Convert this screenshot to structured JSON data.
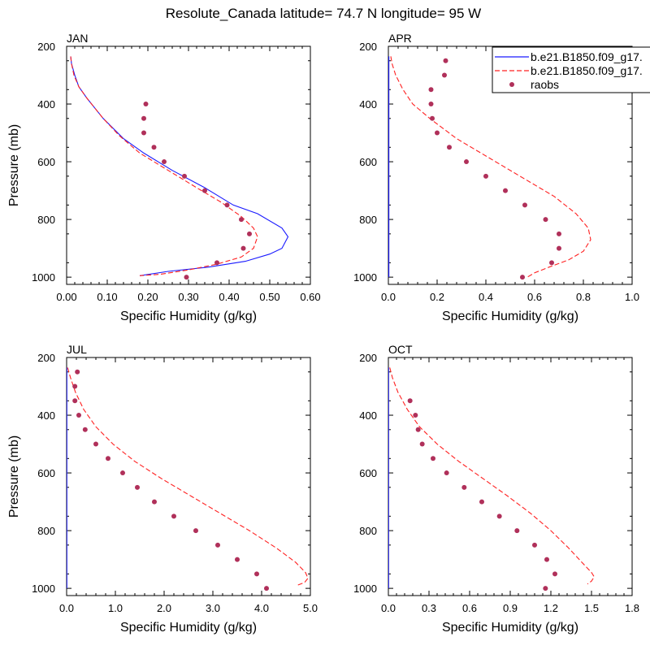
{
  "figure": {
    "title": "Resolute_Canada  latitude= 74.7 N longitude= 95 W"
  },
  "legend": {
    "placement": "top-right of APR panel",
    "entries": [
      {
        "label": "b.e21.B1850.f09_g17.",
        "style": "solid",
        "color": "#1a1aff"
      },
      {
        "label": "b.e21.B1850.f09_g17.",
        "style": "dashed",
        "color": "#ff2020"
      },
      {
        "label": "raobs",
        "style": "marker",
        "color": "#b0305a"
      }
    ]
  },
  "chart_data": [
    {
      "type": "line",
      "panel": "JAN",
      "xlabel": "Specific Humidity (g/kg)",
      "ylabel": "Pressure (mb)",
      "xlim": [
        0,
        0.6
      ],
      "xticks": [
        0,
        0.1,
        0.2,
        0.3,
        0.4,
        0.5,
        0.6
      ],
      "xticklabels": [
        "0.00",
        "0.10",
        "0.20",
        "0.30",
        "0.40",
        "0.50",
        "0.60"
      ],
      "ylim": [
        1025,
        200
      ],
      "yticks": [
        200,
        400,
        600,
        800,
        1000
      ],
      "series": [
        {
          "name": "b.e21.B1850.f09_g17. (solid)",
          "style": "solid",
          "x": [
            0.01,
            0.012,
            0.02,
            0.03,
            0.05,
            0.09,
            0.14,
            0.19,
            0.26,
            0.34,
            0.41,
            0.47,
            0.53,
            0.545,
            0.53,
            0.5,
            0.44,
            0.35,
            0.25,
            0.18
          ],
          "y": [
            235,
            260,
            300,
            340,
            380,
            450,
            520,
            570,
            630,
            690,
            750,
            780,
            830,
            860,
            900,
            920,
            945,
            965,
            980,
            995
          ]
        },
        {
          "name": "b.e21.B1850.f09_g17. (dashed)",
          "style": "dashed",
          "x": [
            0.01,
            0.012,
            0.018,
            0.03,
            0.05,
            0.09,
            0.13,
            0.18,
            0.25,
            0.32,
            0.38,
            0.43,
            0.46,
            0.47,
            0.46,
            0.43,
            0.37,
            0.3,
            0.23,
            0.18
          ],
          "y": [
            235,
            260,
            300,
            340,
            380,
            450,
            510,
            570,
            630,
            690,
            740,
            790,
            830,
            860,
            900,
            930,
            955,
            975,
            990,
            995
          ]
        },
        {
          "name": "raobs",
          "style": "marker",
          "x": [
            0.195,
            0.19,
            0.19,
            0.215,
            0.24,
            0.29,
            0.34,
            0.395,
            0.43,
            0.45,
            0.435,
            0.37,
            0.295
          ],
          "y": [
            400,
            450,
            500,
            550,
            600,
            650,
            700,
            750,
            800,
            850,
            900,
            950,
            1000
          ]
        }
      ]
    },
    {
      "type": "line",
      "panel": "APR",
      "xlabel": "Specific Humidity (g/kg)",
      "ylabel": "",
      "xlim": [
        0,
        1.0
      ],
      "xticks": [
        0,
        0.2,
        0.4,
        0.6,
        0.8,
        1.0
      ],
      "xticklabels": [
        "0.0",
        "0.2",
        "0.4",
        "0.6",
        "0.8",
        "1.0"
      ],
      "ylim": [
        1025,
        200
      ],
      "yticks": [
        200,
        400,
        600,
        800,
        1000
      ],
      "series": [
        {
          "name": "b.e21.B1850.f09_g17. (solid)",
          "style": "solid",
          "x": [
            0.002,
            0.002,
            0.002,
            0.002
          ],
          "y": [
            235,
            500,
            800,
            1000
          ]
        },
        {
          "name": "b.e21.B1850.f09_g17. (dashed)",
          "style": "dashed",
          "x": [
            0.01,
            0.015,
            0.03,
            0.06,
            0.1,
            0.17,
            0.28,
            0.42,
            0.56,
            0.68,
            0.77,
            0.82,
            0.83,
            0.8,
            0.74,
            0.66,
            0.6,
            0.57
          ],
          "y": [
            235,
            260,
            300,
            350,
            400,
            450,
            520,
            590,
            660,
            720,
            780,
            830,
            870,
            910,
            940,
            965,
            985,
            1000
          ]
        },
        {
          "name": "raobs",
          "style": "marker",
          "x": [
            0.235,
            0.23,
            0.175,
            0.175,
            0.18,
            0.2,
            0.25,
            0.32,
            0.4,
            0.48,
            0.56,
            0.645,
            0.7,
            0.7,
            0.67,
            0.55
          ],
          "y": [
            250,
            300,
            350,
            400,
            450,
            500,
            550,
            600,
            650,
            700,
            750,
            800,
            850,
            900,
            950,
            1000
          ]
        }
      ]
    },
    {
      "type": "line",
      "panel": "JUL",
      "xlabel": "Specific Humidity (g/kg)",
      "ylabel": "Pressure (mb)",
      "xlim": [
        0,
        5.0
      ],
      "xticks": [
        0,
        1,
        2,
        3,
        4,
        5
      ],
      "xticklabels": [
        "0.0",
        "1.0",
        "2.0",
        "3.0",
        "4.0",
        "5.0"
      ],
      "ylim": [
        1025,
        200
      ],
      "yticks": [
        200,
        400,
        600,
        800,
        1000
      ],
      "series": [
        {
          "name": "b.e21.B1850.f09_g17. (solid)",
          "style": "solid",
          "x": [
            0.005,
            0.005,
            0.005,
            0.005
          ],
          "y": [
            235,
            500,
            800,
            1000
          ]
        },
        {
          "name": "b.e21.B1850.f09_g17. (dashed)",
          "style": "dashed",
          "x": [
            0.02,
            0.08,
            0.18,
            0.35,
            0.6,
            0.95,
            1.4,
            1.95,
            2.55,
            3.15,
            3.75,
            4.3,
            4.7,
            4.9,
            4.95,
            4.88,
            4.72
          ],
          "y": [
            235,
            270,
            320,
            380,
            440,
            500,
            560,
            620,
            680,
            740,
            800,
            860,
            910,
            945,
            965,
            980,
            990
          ]
        },
        {
          "name": "raobs",
          "style": "marker",
          "x": [
            0.22,
            0.17,
            0.17,
            0.25,
            0.38,
            0.6,
            0.85,
            1.15,
            1.45,
            1.8,
            2.2,
            2.65,
            3.1,
            3.5,
            3.9,
            4.1
          ],
          "y": [
            250,
            300,
            350,
            400,
            450,
            500,
            550,
            600,
            650,
            700,
            750,
            800,
            850,
            900,
            950,
            1000
          ]
        }
      ]
    },
    {
      "type": "line",
      "panel": "OCT",
      "xlabel": "Specific Humidity (g/kg)",
      "ylabel": "",
      "xlim": [
        0,
        1.8
      ],
      "xticks": [
        0,
        0.3,
        0.6,
        0.9,
        1.2,
        1.5,
        1.8
      ],
      "xticklabels": [
        "0.0",
        "0.3",
        "0.6",
        "0.9",
        "1.2",
        "1.5",
        "1.8"
      ],
      "ylim": [
        1025,
        200
      ],
      "yticks": [
        200,
        400,
        600,
        800,
        1000
      ],
      "series": [
        {
          "name": "b.e21.B1850.f09_g17. (solid)",
          "style": "solid",
          "x": [
            0.002,
            0.002,
            0.002,
            0.002
          ],
          "y": [
            235,
            500,
            800,
            1000
          ]
        },
        {
          "name": "b.e21.B1850.f09_g17. (dashed)",
          "style": "dashed",
          "x": [
            0.01,
            0.03,
            0.07,
            0.14,
            0.23,
            0.36,
            0.52,
            0.7,
            0.88,
            1.05,
            1.2,
            1.33,
            1.43,
            1.5,
            1.52,
            1.5,
            1.47
          ],
          "y": [
            235,
            270,
            320,
            380,
            440,
            500,
            560,
            620,
            680,
            740,
            800,
            860,
            910,
            945,
            960,
            975,
            985
          ]
        },
        {
          "name": "raobs",
          "style": "marker",
          "x": [
            0.16,
            0.2,
            0.22,
            0.25,
            0.33,
            0.43,
            0.56,
            0.69,
            0.82,
            0.95,
            1.08,
            1.17,
            1.23,
            1.16
          ],
          "y": [
            350,
            400,
            450,
            500,
            550,
            600,
            650,
            700,
            750,
            800,
            850,
            900,
            950,
            1000
          ]
        }
      ]
    }
  ]
}
